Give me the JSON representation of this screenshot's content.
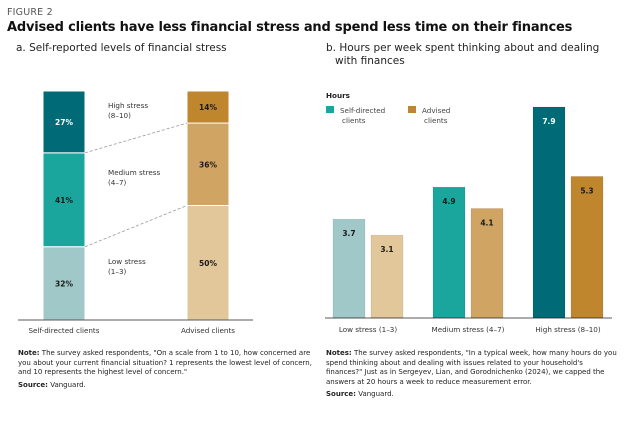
{
  "figure": {
    "label": "FIGURE 2",
    "title": "Advised clients have less financial stress and spend less time on their finances"
  },
  "colors": {
    "self_high": "#006b77",
    "self_medium": "#1aa69c",
    "self_low": "#a0c8c8",
    "adv_high": "#c0862e",
    "adv_medium": "#d0a463",
    "adv_low": "#e2c79b",
    "legend_self": "#1aa69c",
    "legend_adv": "#c0862e"
  },
  "panel_a": {
    "subtitle": "a. Self-reported levels of financial stress",
    "note_label": "Note:",
    "note_text": " The survey asked respondents, \"On a scale from 1 to 10, how concerned are you about your current financial situation? 1 represents the lowest level of concern, and 10 represents the highest level of concern.\"",
    "source_label": "Source:",
    "source_text": " Vanguard."
  },
  "panel_b": {
    "subtitle_line1": "b. Hours per week spent thinking about and dealing",
    "subtitle_line2": "with finances",
    "note_label": "Notes:",
    "note_text": " The survey asked respondents, \"In a typical week, how many hours do you spend thinking about and dealing with issues related to your household's finances?\" Just as in Sergeyev, Lian, and Gorodnichenko (2024), we capped the answers at 20 hours a week to reduce measurement error.",
    "source_label": "Source:",
    "source_text": " Vanguard."
  },
  "chart_data": [
    {
      "type": "bar",
      "stacked": true,
      "title": "a. Self-reported levels of financial stress",
      "categories": [
        "Self-directed clients",
        "Advised clients"
      ],
      "segment_order_bottom_to_top": [
        "Low stress (1–3)",
        "Medium stress (4–7)",
        "High stress (8–10)"
      ],
      "series": [
        {
          "name": "Low stress (1–3)",
          "label_line1": "Low stress",
          "label_line2": "(1–3)",
          "values": [
            32,
            50
          ],
          "labels": [
            "32%",
            "50%"
          ]
        },
        {
          "name": "Medium stress (4–7)",
          "label_line1": "Medium stress",
          "label_line2": "(4–7)",
          "values": [
            41,
            36
          ],
          "labels": [
            "41%",
            "36%"
          ]
        },
        {
          "name": "High stress (8–10)",
          "label_line1": "High stress",
          "label_line2": "(8–10)",
          "values": [
            27,
            14
          ],
          "labels": [
            "27%",
            "14%"
          ]
        }
      ],
      "unit": "%",
      "ylim": [
        0,
        100
      ],
      "connector_lines": "dashed",
      "grid": false
    },
    {
      "type": "bar",
      "title": "b. Hours per week spent thinking about and dealing with finances",
      "ylabel": "Hours",
      "categories": [
        "Low stress (1–3)",
        "Medium stress (4–7)",
        "High stress (8–10)"
      ],
      "series": [
        {
          "name": "Self-directed clients",
          "legend_line1": "Self-directed",
          "legend_line2": "clients",
          "values": [
            3.7,
            4.9,
            7.9
          ],
          "labels": [
            "3.7",
            "4.9",
            "7.9"
          ]
        },
        {
          "name": "Advised clients",
          "legend_line1": "Advised",
          "legend_line2": "clients",
          "values": [
            3.1,
            4.1,
            5.3
          ],
          "labels": [
            "3.1",
            "4.1",
            "5.3"
          ]
        }
      ],
      "ylim": [
        0,
        9.2
      ],
      "legend": "top-left",
      "grid": false
    }
  ]
}
